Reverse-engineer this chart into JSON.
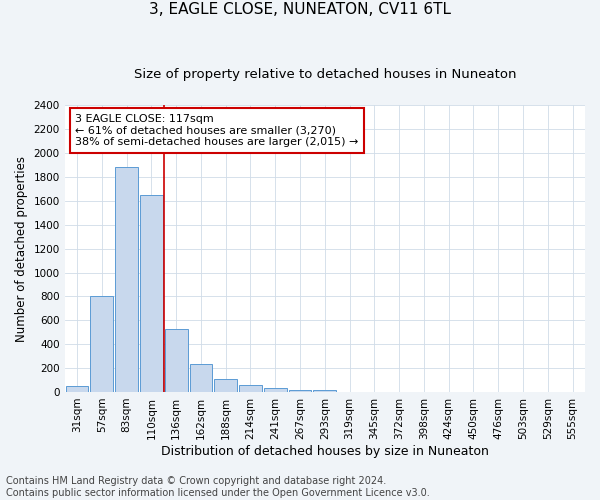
{
  "title": "3, EAGLE CLOSE, NUNEATON, CV11 6TL",
  "subtitle": "Size of property relative to detached houses in Nuneaton",
  "xlabel": "Distribution of detached houses by size in Nuneaton",
  "ylabel": "Number of detached properties",
  "bar_labels": [
    "31sqm",
    "57sqm",
    "83sqm",
    "110sqm",
    "136sqm",
    "162sqm",
    "188sqm",
    "214sqm",
    "241sqm",
    "267sqm",
    "293sqm",
    "319sqm",
    "345sqm",
    "372sqm",
    "398sqm",
    "424sqm",
    "450sqm",
    "476sqm",
    "503sqm",
    "529sqm",
    "555sqm"
  ],
  "bar_values": [
    50,
    800,
    1880,
    1650,
    530,
    235,
    105,
    55,
    30,
    20,
    20,
    0,
    0,
    0,
    0,
    0,
    0,
    0,
    0,
    0,
    0
  ],
  "bar_color": "#c8d8ed",
  "bar_edge_color": "#5b9bd5",
  "vline_x": 3.5,
  "vline_color": "#cc0000",
  "annotation_text": "3 EAGLE CLOSE: 117sqm\n← 61% of detached houses are smaller (3,270)\n38% of semi-detached houses are larger (2,015) →",
  "annotation_box_color": "#ffffff",
  "annotation_box_edge": "#cc0000",
  "ylim": [
    0,
    2400
  ],
  "yticks": [
    0,
    200,
    400,
    600,
    800,
    1000,
    1200,
    1400,
    1600,
    1800,
    2000,
    2200,
    2400
  ],
  "footer_text": "Contains HM Land Registry data © Crown copyright and database right 2024.\nContains public sector information licensed under the Open Government Licence v3.0.",
  "plot_bg_color": "#ffffff",
  "fig_bg_color": "#f0f4f8",
  "grid_color": "#d0dce8",
  "title_fontsize": 11,
  "subtitle_fontsize": 9.5,
  "ylabel_fontsize": 8.5,
  "xlabel_fontsize": 9,
  "tick_fontsize": 7.5,
  "annot_fontsize": 8,
  "footer_fontsize": 7
}
